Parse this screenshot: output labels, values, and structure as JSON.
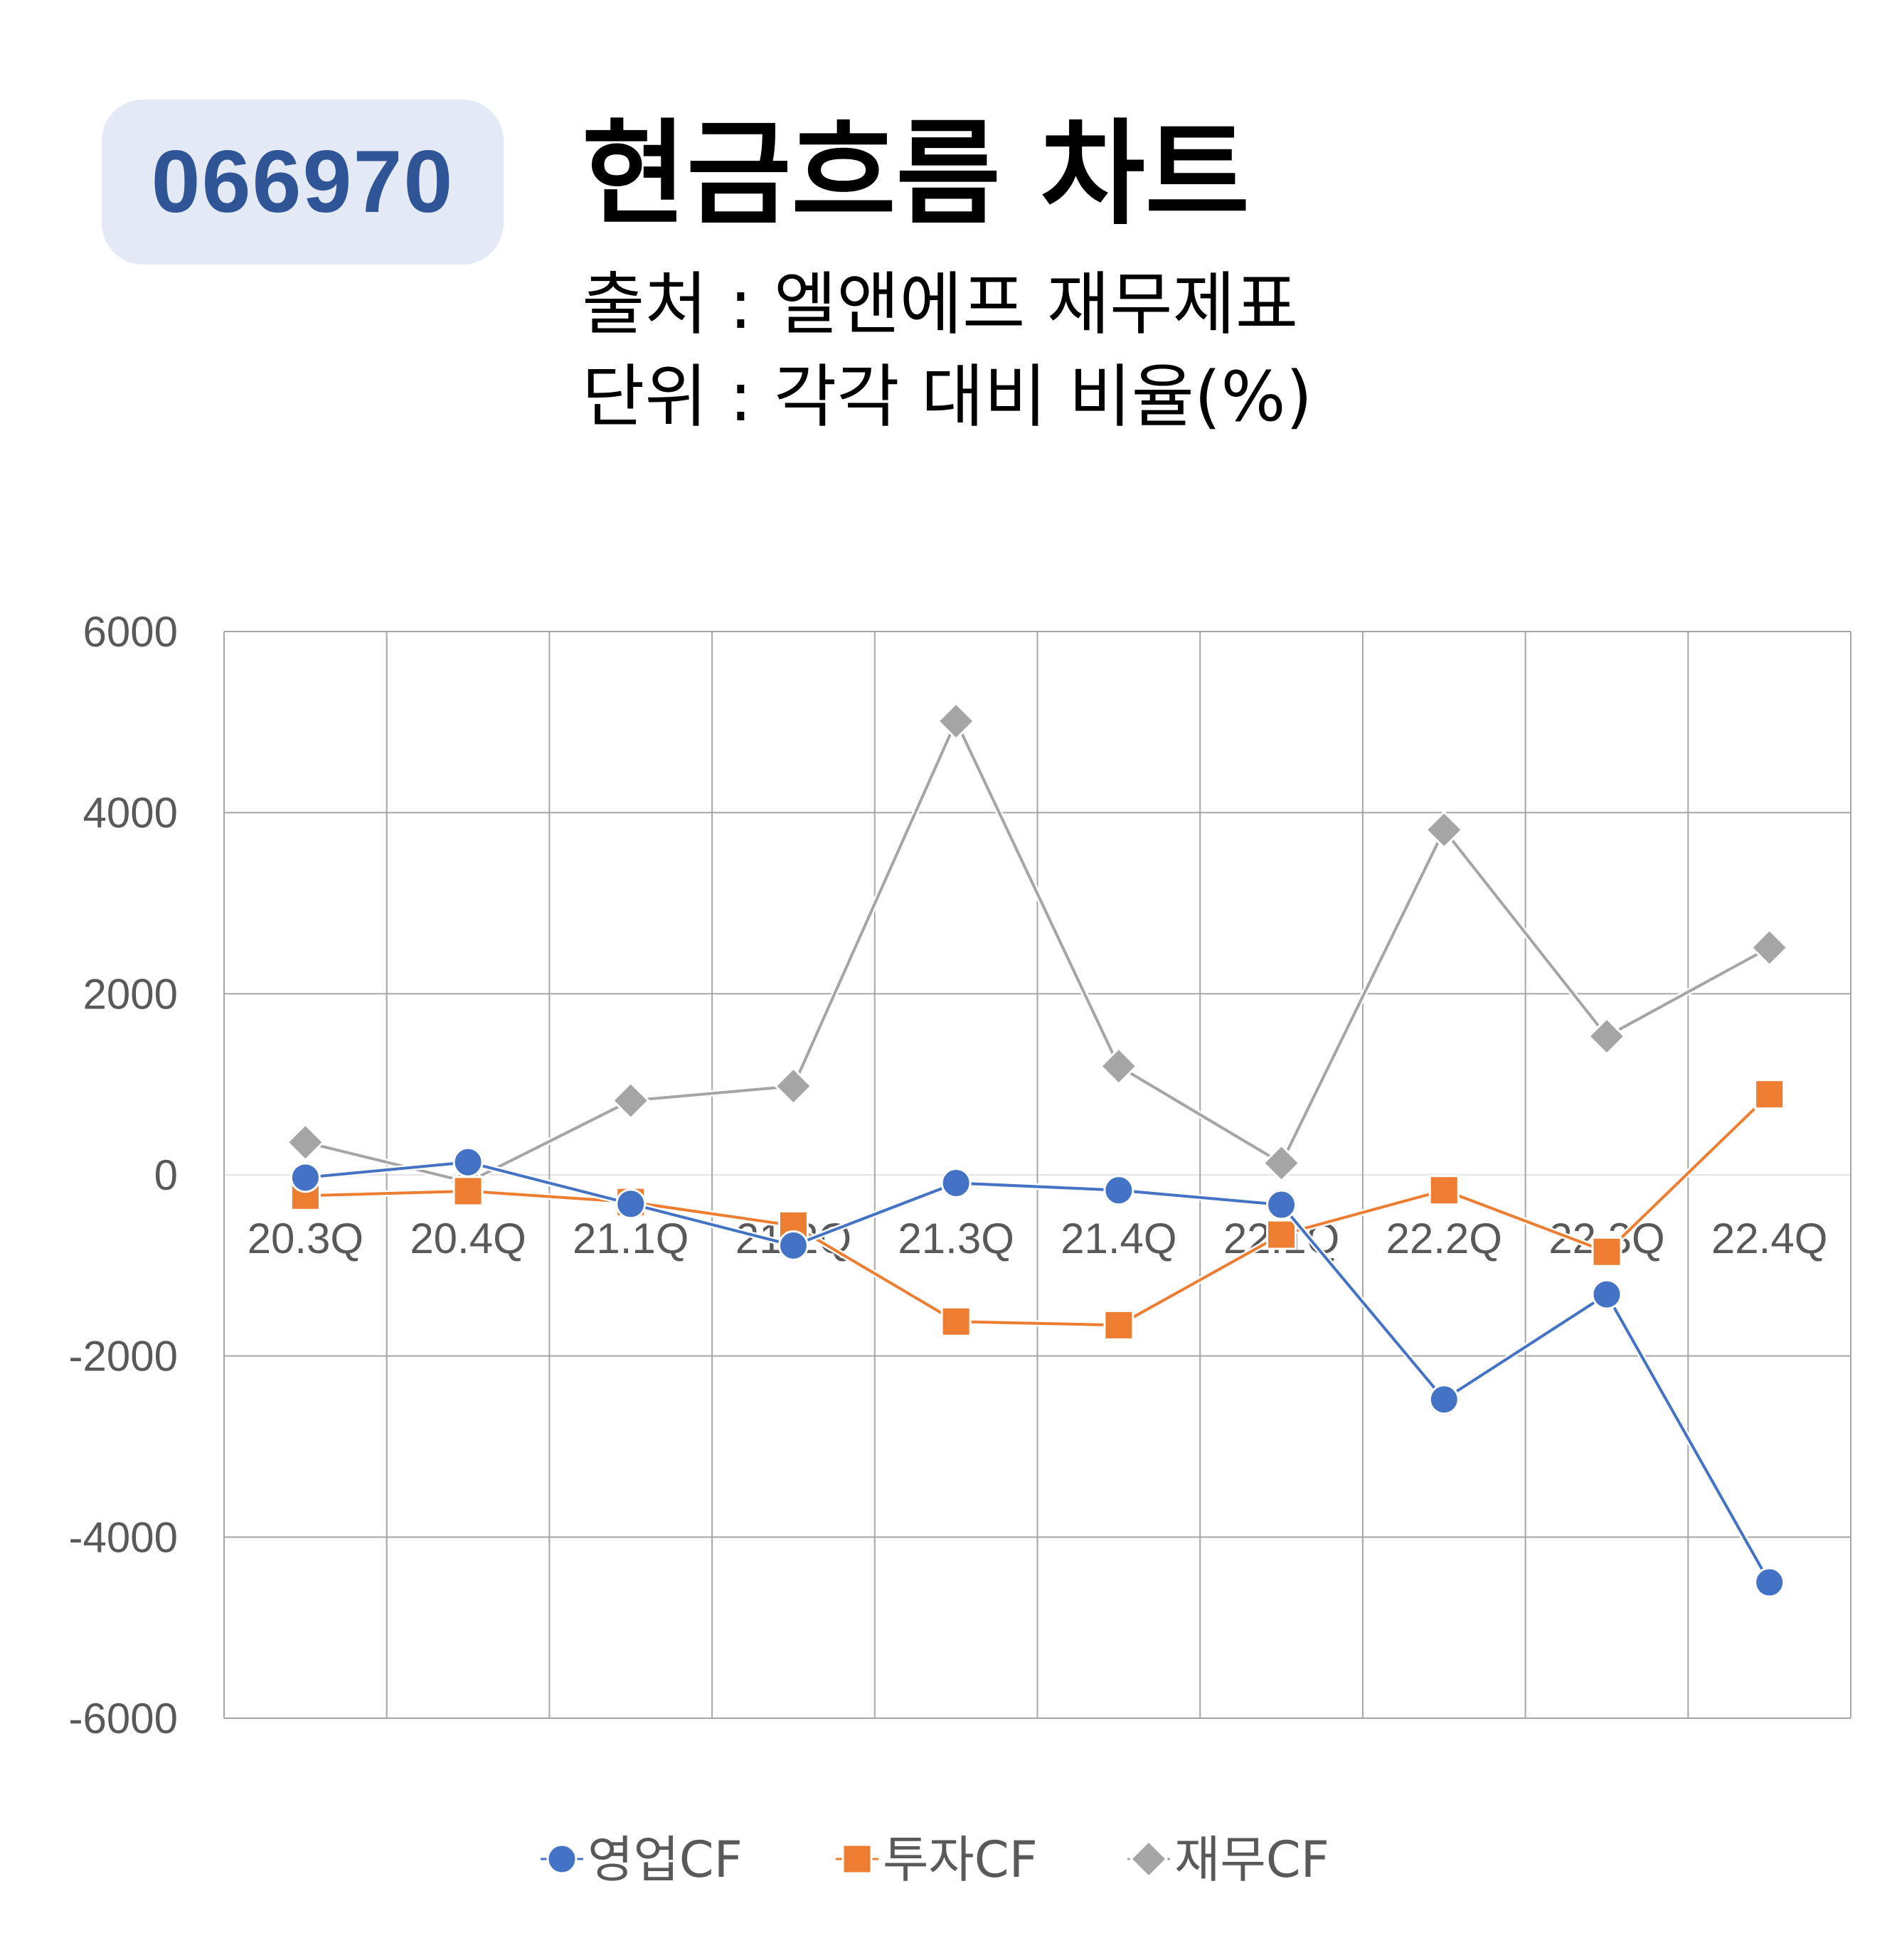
{
  "header": {
    "code": "066970",
    "title": "현금흐름 차트",
    "source": "출처 : 엘앤에프 재무제표",
    "unit": "단위 : 각각 대비 비율(%)"
  },
  "colors": {
    "operating": "#4472c4",
    "investing": "#ed7d31",
    "financing": "#a5a5a5",
    "grid": "#a6a6a6",
    "badge_bg": "#e3e9f5",
    "badge_text": "#2f5597"
  },
  "chart_data": {
    "type": "line",
    "categories": [
      "20.3Q",
      "20.4Q",
      "21.1Q",
      "21.2Q",
      "21.3Q",
      "21.4Q",
      "22.1Q",
      "22.2Q",
      "22.3Q",
      "22.4Q"
    ],
    "series": [
      {
        "name": "영업CF",
        "marker": "circle",
        "values": [
          -30,
          140,
          -320,
          -780,
          -90,
          -170,
          -330,
          -2480,
          -1320,
          -4500
        ]
      },
      {
        "name": "투자CF",
        "marker": "square",
        "values": [
          -230,
          -180,
          -300,
          -560,
          -1620,
          -1660,
          -660,
          -170,
          -850,
          890
        ]
      },
      {
        "name": "재무CF",
        "marker": "diamond",
        "values": [
          360,
          -80,
          820,
          980,
          5010,
          1200,
          130,
          3810,
          1530,
          2510
        ]
      }
    ],
    "yticks": [
      6000,
      4000,
      2000,
      0,
      -2000,
      -4000,
      -6000
    ],
    "ylim": [
      -6000,
      6000
    ],
    "grid": true,
    "legend": "bottom"
  }
}
